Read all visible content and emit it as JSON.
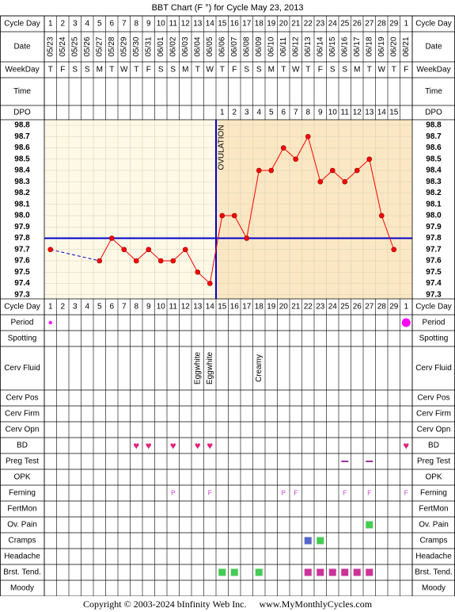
{
  "title": "BBT Chart (F °) for Cycle May 23, 2013",
  "footer": {
    "copyright": "Copyright © 2003-2024 bInfinity Web Inc.",
    "site": "www.MyMonthlyCycles.com"
  },
  "row_labels": {
    "cycle_day": "Cycle Day",
    "date": "Date",
    "weekday": "WeekDay",
    "time": "Time",
    "dpo": "DPO",
    "period": "Period",
    "spotting": "Spotting",
    "cerv_fluid": "Cerv Fluid",
    "cerv_pos": "Cerv Pos",
    "cerv_firm": "Cerv Firm",
    "cerv_opn": "Cerv Opn",
    "bd": "BD",
    "preg_test": "Preg Test",
    "opk": "OPK",
    "ferning": "Ferning",
    "fertmon": "FertMon",
    "ov_pain": "Ov. Pain",
    "cramps": "Cramps",
    "headache": "Headache",
    "brst_tend": "Brst. Tend.",
    "moody": "Moody"
  },
  "colors": {
    "pre_ovulation_bg": "#fdf9e6",
    "post_ovulation_bg": "#fbe7c3",
    "temp_line": "#ff0000",
    "temp_point": "#ff0000",
    "coverline": "#0000cc",
    "ovulation_line": "#0000cc",
    "period_dot": "#ff00ff",
    "heart": "#e0227a",
    "ferning_text": "#cc33cc",
    "preg_test_dash": "#993399",
    "ov_pain": "#44cc55",
    "cramps_day22": "#5566cc",
    "cramps_day23": "#44cc55",
    "brst_green": "#44cc55",
    "brst_purple": "#cc3399"
  },
  "cycle_days": [
    "1",
    "2",
    "3",
    "4",
    "5",
    "6",
    "7",
    "8",
    "9",
    "10",
    "11",
    "12",
    "13",
    "14",
    "15",
    "16",
    "17",
    "18",
    "19",
    "20",
    "21",
    "22",
    "23",
    "24",
    "25",
    "26",
    "27",
    "28",
    "29",
    "1"
  ],
  "dates": [
    "05/23",
    "05/24",
    "05/25",
    "05/26",
    "05/27",
    "05/28",
    "05/29",
    "05/30",
    "05/31",
    "06/01",
    "06/02",
    "06/03",
    "06/04",
    "06/05",
    "06/06",
    "06/07",
    "06/08",
    "06/09",
    "06/10",
    "06/11",
    "06/12",
    "06/13",
    "06/14",
    "06/15",
    "06/16",
    "06/17",
    "06/18",
    "06/19",
    "06/20",
    "06/21"
  ],
  "weekdays": [
    "T",
    "F",
    "S",
    "S",
    "M",
    "T",
    "W",
    "T",
    "F",
    "S",
    "S",
    "M",
    "T",
    "W",
    "T",
    "F",
    "S",
    "S",
    "M",
    "T",
    "W",
    "T",
    "F",
    "S",
    "S",
    "M",
    "T",
    "W",
    "T",
    "F"
  ],
  "dpo": [
    "",
    "",
    "",
    "",
    "",
    "",
    "",
    "",
    "",
    "",
    "",
    "",
    "",
    "",
    "1",
    "2",
    "3",
    "4",
    "5",
    "6",
    "7",
    "8",
    "9",
    "10",
    "11",
    "12",
    "13",
    "14",
    "15",
    ""
  ],
  "ovulation": {
    "label": "OVULATION",
    "after_day_index": 13
  },
  "chart_data": {
    "type": "line",
    "title": "BBT Chart (F °) for Cycle May 23, 2013",
    "y_ticks": [
      "98.8",
      "98.7",
      "98.6",
      "98.5",
      "98.4",
      "98.3",
      "98.2",
      "98.1",
      "98.0",
      "97.9",
      "97.8",
      "97.7",
      "97.6",
      "97.5",
      "97.4",
      "97.3"
    ],
    "ylim": [
      97.3,
      98.8
    ],
    "coverline": 97.8,
    "temps": [
      97.7,
      null,
      null,
      null,
      97.6,
      97.8,
      97.7,
      97.6,
      97.7,
      97.6,
      97.6,
      97.7,
      97.5,
      97.4,
      98.0,
      98.0,
      97.8,
      98.4,
      98.4,
      98.6,
      98.5,
      98.7,
      98.3,
      98.4,
      98.3,
      98.4,
      98.5,
      98.0,
      97.7,
      null
    ],
    "dashed_segments": [
      [
        0,
        4
      ]
    ]
  },
  "period": [
    {
      "day_index": 0,
      "size": "small"
    },
    {
      "day_index": 29,
      "size": "large"
    }
  ],
  "cerv_fluid": [
    {
      "day_index": 12,
      "text": "Eggwhite"
    },
    {
      "day_index": 13,
      "text": "Eggwhite"
    },
    {
      "day_index": 17,
      "text": "Creamy"
    }
  ],
  "bd_days": [
    7,
    8,
    10,
    12,
    13,
    29
  ],
  "preg_test_days": [
    24,
    26
  ],
  "ferning": [
    {
      "day_index": 10,
      "text": "P"
    },
    {
      "day_index": 13,
      "text": "F"
    },
    {
      "day_index": 19,
      "text": "P"
    },
    {
      "day_index": 20,
      "text": "F"
    },
    {
      "day_index": 24,
      "text": "F"
    },
    {
      "day_index": 26,
      "text": "F"
    },
    {
      "day_index": 29,
      "text": "F"
    }
  ],
  "ov_pain_days": [
    26
  ],
  "cramps": [
    {
      "day_index": 21,
      "color": "#5566cc"
    },
    {
      "day_index": 22,
      "color": "#44cc55"
    }
  ],
  "brst_tend": [
    {
      "day_index": 14,
      "color": "#44cc55"
    },
    {
      "day_index": 15,
      "color": "#44cc55"
    },
    {
      "day_index": 17,
      "color": "#44cc55"
    },
    {
      "day_index": 21,
      "color": "#cc3399"
    },
    {
      "day_index": 22,
      "color": "#cc3399"
    },
    {
      "day_index": 23,
      "color": "#cc3399"
    },
    {
      "day_index": 24,
      "color": "#cc3399"
    },
    {
      "day_index": 25,
      "color": "#cc3399"
    },
    {
      "day_index": 26,
      "color": "#cc3399"
    }
  ]
}
